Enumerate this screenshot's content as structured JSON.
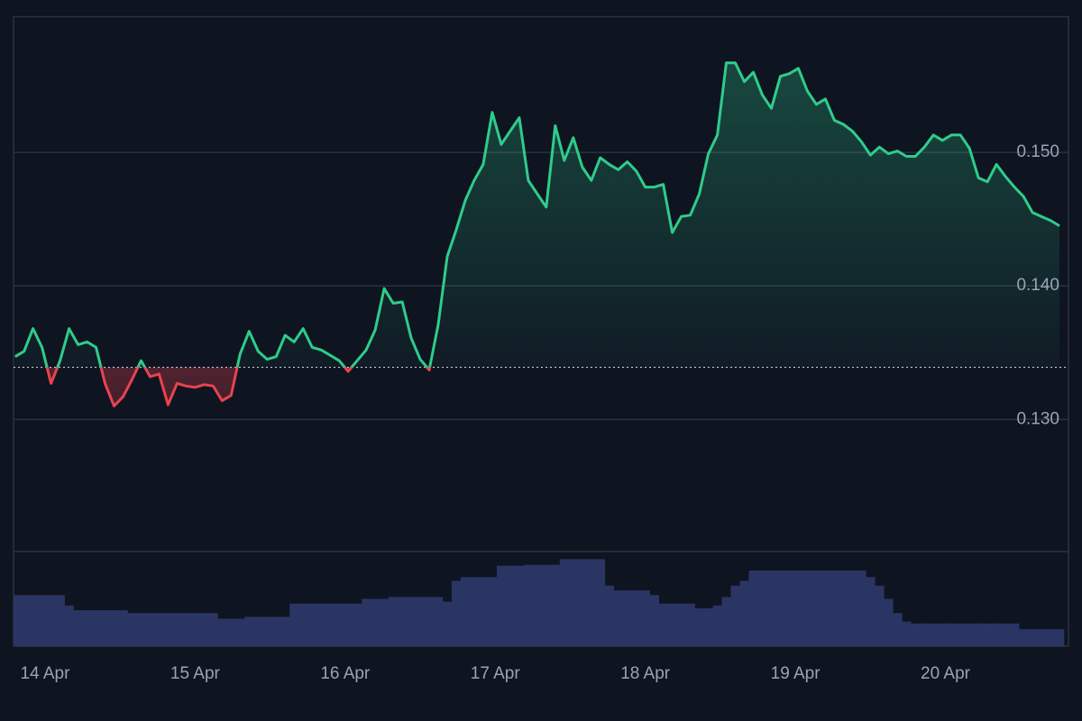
{
  "chart_data": {
    "type": "line",
    "x": [
      13.8,
      13.86,
      13.92,
      13.98,
      14.04,
      14.1,
      14.16,
      14.22,
      14.28,
      14.34,
      14.4,
      14.46,
      14.52,
      14.58,
      14.64,
      14.7,
      14.76,
      14.82,
      14.88,
      14.94,
      15,
      15.06,
      15.12,
      15.18,
      15.24,
      15.3,
      15.36,
      15.42,
      15.48,
      15.54,
      15.6,
      15.66,
      15.72,
      15.78,
      15.84,
      15.9,
      15.96,
      16.02,
      16.08,
      16.14,
      16.2,
      16.26,
      16.32,
      16.38,
      16.44,
      16.5,
      16.56,
      16.62,
      16.68,
      16.74,
      16.8,
      16.86,
      16.92,
      16.98,
      17.04,
      17.1,
      17.16,
      17.22,
      17.28,
      17.34,
      17.4,
      17.46,
      17.52,
      17.58,
      17.64,
      17.7,
      17.76,
      17.82,
      17.88,
      17.94,
      18,
      18.06,
      18.12,
      18.18,
      18.24,
      18.3,
      18.36,
      18.42,
      18.48,
      18.54,
      18.6,
      18.66,
      18.72,
      18.78,
      18.84,
      18.9,
      18.96,
      19.02,
      19.08,
      19.14,
      19.2,
      19.26,
      19.32,
      19.38,
      19.44,
      19.5,
      19.56,
      19.62,
      19.68,
      19.74,
      19.8,
      19.86,
      19.92,
      19.98,
      20.04,
      20.1,
      20.16,
      20.22,
      20.28,
      20.34,
      20.4,
      20.46,
      20.52,
      20.58,
      20.64,
      20.7,
      20.76
    ],
    "series": [
      {
        "color": "#2ecc8a",
        "values": [
          0.1347,
          0.1351,
          0.1368,
          0.1354,
          0.1327,
          0.1344,
          0.1368,
          0.1356,
          0.1358,
          0.1354,
          0.1327,
          0.131,
          0.1317,
          0.133,
          0.1344,
          0.1332,
          0.1334,
          0.1311,
          0.1327,
          0.1325,
          0.1324,
          0.1326,
          0.1325,
          0.1314,
          0.1318,
          0.1349,
          0.1366,
          0.1351,
          0.1345,
          0.1347,
          0.1363,
          0.1358,
          0.1368,
          0.1354,
          0.1352,
          0.1348,
          0.1344,
          0.1336,
          0.1344,
          0.1352,
          0.1367,
          0.1398,
          0.1387,
          0.1388,
          0.1361,
          0.1345,
          0.1337,
          0.1371,
          0.1422,
          0.1442,
          0.1464,
          0.1479,
          0.1491,
          0.153,
          0.1506,
          0.1516,
          0.1526,
          0.1479,
          0.1469,
          0.1459,
          0.152,
          0.1494,
          0.1511,
          0.1489,
          0.1479,
          0.1496,
          0.1491,
          0.1487,
          0.1493,
          0.1486,
          0.1474,
          0.1474,
          0.1476,
          0.144,
          0.1452,
          0.1453,
          0.1469,
          0.1499,
          0.1513,
          0.1567,
          0.1567,
          0.1553,
          0.156,
          0.1543,
          0.1533,
          0.1557,
          0.1559,
          0.1563,
          0.1546,
          0.1536,
          0.154,
          0.1524,
          0.1521,
          0.1516,
          0.1508,
          0.1498,
          0.1504,
          0.1499,
          0.1501,
          0.1497,
          0.1497,
          0.1504,
          0.1513,
          0.1509,
          0.1513,
          0.1513,
          0.1503,
          0.1481,
          0.1478,
          0.1491,
          0.1482,
          0.1474,
          0.1467,
          0.1455,
          0.1452,
          0.1449,
          0.1445
        ]
      }
    ],
    "baseline": 0.1339,
    "up_color": "#2ecc8a",
    "down_color": "#e8434f",
    "volume": {
      "color": "#2a3563",
      "ylim": [
        0,
        100
      ],
      "values": [
        54,
        54,
        54,
        54,
        54,
        54,
        43,
        38,
        38,
        38,
        38,
        38,
        38,
        35,
        35,
        35,
        35,
        35,
        35,
        35,
        35,
        35,
        35,
        29,
        29,
        29,
        31,
        31,
        31,
        31,
        31,
        45,
        45,
        45,
        45,
        45,
        45,
        45,
        45,
        50,
        50,
        50,
        52,
        52,
        52,
        52,
        52,
        52,
        47,
        69,
        73,
        73,
        73,
        73,
        85,
        85,
        85,
        86,
        86,
        86,
        86,
        92,
        92,
        92,
        92,
        92,
        64,
        59,
        59,
        59,
        59,
        54,
        45,
        45,
        45,
        45,
        40,
        40,
        43,
        52,
        64,
        69,
        80,
        80,
        80,
        80,
        80,
        80,
        80,
        80,
        80,
        80,
        80,
        80,
        80,
        73,
        64,
        50,
        35,
        26,
        24,
        24,
        24,
        24,
        24,
        24,
        24,
        24,
        24,
        24,
        24,
        24,
        18,
        18,
        18,
        18,
        18
      ]
    },
    "xlim": [
      13.79,
      20.82
    ],
    "ylim": [
      0.1201,
      0.1602
    ],
    "xticks": [
      {
        "value": 14,
        "label": "14 Apr"
      },
      {
        "value": 15,
        "label": "15 Apr"
      },
      {
        "value": 16,
        "label": "16 Apr"
      },
      {
        "value": 17,
        "label": "17 Apr"
      },
      {
        "value": 18,
        "label": "18 Apr"
      },
      {
        "value": 19,
        "label": "19 Apr"
      },
      {
        "value": 20,
        "label": "20 Apr"
      }
    ],
    "yticks": [
      {
        "value": 0.13,
        "label": "0.130"
      },
      {
        "value": 0.14,
        "label": "0.140"
      },
      {
        "value": 0.15,
        "label": "0.150"
      }
    ],
    "grid": true
  }
}
